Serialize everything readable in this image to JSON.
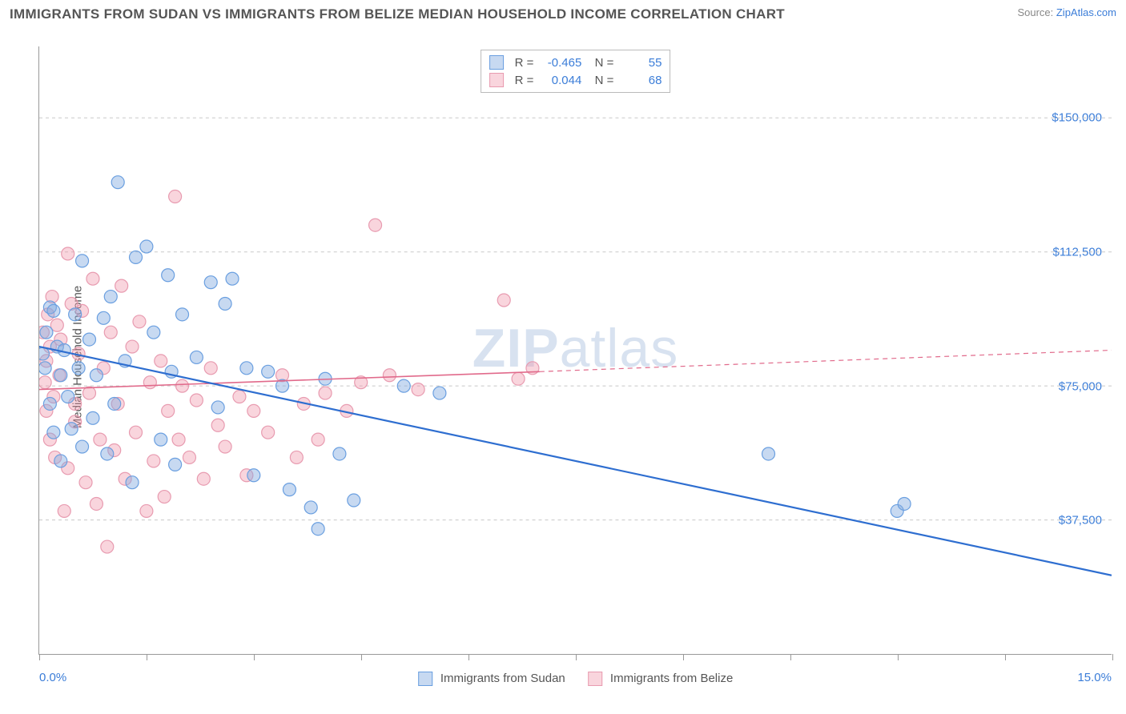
{
  "title": "IMMIGRANTS FROM SUDAN VS IMMIGRANTS FROM BELIZE MEDIAN HOUSEHOLD INCOME CORRELATION CHART",
  "source": {
    "label": "Source: ",
    "name": "ZipAtlas.com"
  },
  "watermark": "ZIPatlas",
  "chart": {
    "type": "scatter-with-trend",
    "ylabel": "Median Household Income",
    "xlim": [
      0.0,
      15.0
    ],
    "ylim": [
      0,
      170000
    ],
    "xtick_positions": [
      0,
      1.5,
      3.0,
      4.5,
      6.0,
      7.5,
      9.0,
      10.5,
      12.0,
      13.5,
      15.0
    ],
    "xlabel_min": "0.0%",
    "xlabel_max": "15.0%",
    "ygrid": [
      {
        "value": 37500,
        "label": "$37,500"
      },
      {
        "value": 75000,
        "label": "$75,000"
      },
      {
        "value": 112500,
        "label": "$112,500"
      },
      {
        "value": 150000,
        "label": "$150,000"
      }
    ],
    "background_color": "#ffffff",
    "grid_color": "#c8c8c8",
    "axis_color": "#999999",
    "text_color": "#555555",
    "tick_label_color": "#3b7dd8",
    "marker_radius": 8,
    "marker_stroke_width": 1.2,
    "series": [
      {
        "id": "sudan",
        "name": "Immigrants from Sudan",
        "R": "-0.465",
        "N": "55",
        "fill_color": "rgba(130,170,225,0.45)",
        "stroke_color": "#6a9fe0",
        "trend": {
          "x1": 0.0,
          "y1": 86000,
          "x2": 15.0,
          "y2": 22000,
          "color": "#2e6ed0",
          "width": 2.2,
          "dash": ""
        },
        "points": [
          [
            0.05,
            84000
          ],
          [
            0.08,
            80000
          ],
          [
            0.1,
            90000
          ],
          [
            0.15,
            97000
          ],
          [
            0.15,
            70000
          ],
          [
            0.2,
            96000
          ],
          [
            0.2,
            62000
          ],
          [
            0.25,
            86000
          ],
          [
            0.3,
            78000
          ],
          [
            0.3,
            54000
          ],
          [
            0.35,
            85000
          ],
          [
            0.4,
            72000
          ],
          [
            0.45,
            63000
          ],
          [
            0.5,
            95000
          ],
          [
            0.55,
            80000
          ],
          [
            0.6,
            58000
          ],
          [
            0.6,
            110000
          ],
          [
            0.7,
            88000
          ],
          [
            0.75,
            66000
          ],
          [
            0.8,
            78000
          ],
          [
            0.9,
            94000
          ],
          [
            0.95,
            56000
          ],
          [
            1.0,
            100000
          ],
          [
            1.05,
            70000
          ],
          [
            1.1,
            132000
          ],
          [
            1.2,
            82000
          ],
          [
            1.3,
            48000
          ],
          [
            1.35,
            111000
          ],
          [
            1.5,
            114000
          ],
          [
            1.6,
            90000
          ],
          [
            1.7,
            60000
          ],
          [
            1.8,
            106000
          ],
          [
            1.85,
            79000
          ],
          [
            1.9,
            53000
          ],
          [
            2.0,
            95000
          ],
          [
            2.2,
            83000
          ],
          [
            2.4,
            104000
          ],
          [
            2.5,
            69000
          ],
          [
            2.6,
            98000
          ],
          [
            2.7,
            105000
          ],
          [
            2.9,
            80000
          ],
          [
            3.0,
            50000
          ],
          [
            3.2,
            79000
          ],
          [
            3.4,
            75000
          ],
          [
            3.5,
            46000
          ],
          [
            3.8,
            41000
          ],
          [
            3.9,
            35000
          ],
          [
            4.0,
            77000
          ],
          [
            4.2,
            56000
          ],
          [
            4.4,
            43000
          ],
          [
            5.1,
            75000
          ],
          [
            5.6,
            73000
          ],
          [
            10.2,
            56000
          ],
          [
            12.0,
            40000
          ],
          [
            12.1,
            42000
          ]
        ]
      },
      {
        "id": "belize",
        "name": "Immigrants from Belize",
        "R": "0.044",
        "N": "68",
        "fill_color": "rgba(240,150,170,0.40)",
        "stroke_color": "#e89bb0",
        "trend": {
          "x1": 0.0,
          "y1": 74000,
          "x2": 15.0,
          "y2": 85000,
          "color": "#e16a8b",
          "width": 1.6,
          "dash": ""
        },
        "trend_extension": {
          "x1": 7.0,
          "y1": 79000,
          "x2": 15.0,
          "y2": 85000,
          "color": "#e16a8b",
          "width": 1.2,
          "dash": "6 5"
        },
        "points": [
          [
            0.05,
            90000
          ],
          [
            0.08,
            76000
          ],
          [
            0.1,
            68000
          ],
          [
            0.1,
            82000
          ],
          [
            0.12,
            95000
          ],
          [
            0.15,
            60000
          ],
          [
            0.15,
            86000
          ],
          [
            0.18,
            100000
          ],
          [
            0.2,
            72000
          ],
          [
            0.22,
            55000
          ],
          [
            0.25,
            92000
          ],
          [
            0.28,
            78000
          ],
          [
            0.3,
            88000
          ],
          [
            0.35,
            40000
          ],
          [
            0.4,
            52000
          ],
          [
            0.4,
            112000
          ],
          [
            0.45,
            98000
          ],
          [
            0.5,
            65000
          ],
          [
            0.5,
            70000
          ],
          [
            0.55,
            84000
          ],
          [
            0.6,
            96000
          ],
          [
            0.65,
            48000
          ],
          [
            0.7,
            73000
          ],
          [
            0.75,
            105000
          ],
          [
            0.8,
            42000
          ],
          [
            0.85,
            60000
          ],
          [
            0.9,
            80000
          ],
          [
            0.95,
            30000
          ],
          [
            1.0,
            90000
          ],
          [
            1.05,
            57000
          ],
          [
            1.1,
            70000
          ],
          [
            1.15,
            103000
          ],
          [
            1.2,
            49000
          ],
          [
            1.3,
            86000
          ],
          [
            1.35,
            62000
          ],
          [
            1.4,
            93000
          ],
          [
            1.5,
            40000
          ],
          [
            1.55,
            76000
          ],
          [
            1.6,
            54000
          ],
          [
            1.7,
            82000
          ],
          [
            1.75,
            44000
          ],
          [
            1.8,
            68000
          ],
          [
            1.9,
            128000
          ],
          [
            1.95,
            60000
          ],
          [
            2.0,
            75000
          ],
          [
            2.1,
            55000
          ],
          [
            2.2,
            71000
          ],
          [
            2.3,
            49000
          ],
          [
            2.4,
            80000
          ],
          [
            2.5,
            64000
          ],
          [
            2.6,
            58000
          ],
          [
            2.8,
            72000
          ],
          [
            2.9,
            50000
          ],
          [
            3.0,
            68000
          ],
          [
            3.2,
            62000
          ],
          [
            3.4,
            78000
          ],
          [
            3.6,
            55000
          ],
          [
            3.7,
            70000
          ],
          [
            3.9,
            60000
          ],
          [
            4.0,
            73000
          ],
          [
            4.3,
            68000
          ],
          [
            4.5,
            76000
          ],
          [
            4.7,
            120000
          ],
          [
            4.9,
            78000
          ],
          [
            5.3,
            74000
          ],
          [
            6.5,
            99000
          ],
          [
            6.7,
            77000
          ],
          [
            6.9,
            80000
          ]
        ]
      }
    ]
  }
}
